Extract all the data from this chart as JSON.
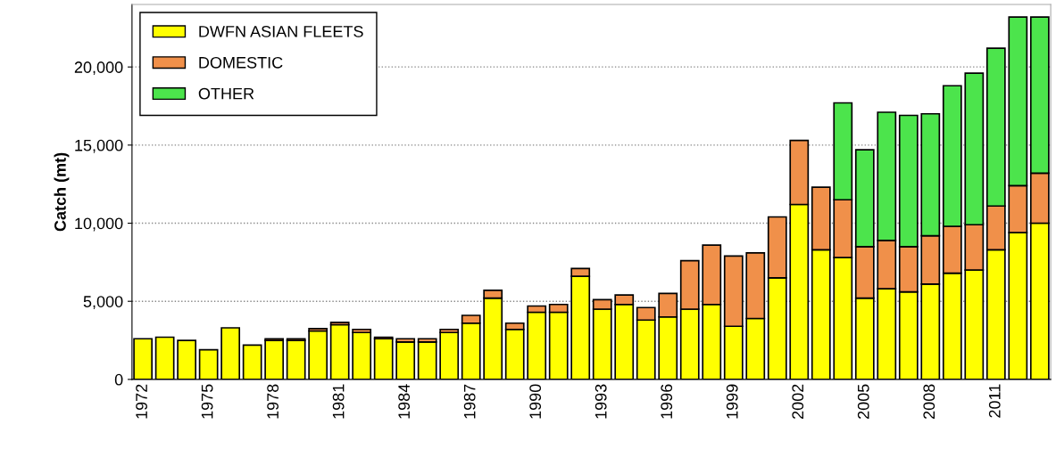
{
  "chart_data": {
    "type": "bar",
    "ylabel": "Catch (mt)",
    "stacked": true,
    "legend": "top left",
    "grid": "y",
    "categories": [
      "1972",
      null,
      null,
      "1975",
      null,
      null,
      "1978",
      null,
      null,
      "1981",
      null,
      null,
      "1984",
      null,
      null,
      "1987",
      null,
      null,
      "1990",
      null,
      null,
      "1993",
      null,
      null,
      "1996",
      null,
      null,
      "1999",
      null,
      null,
      "2002",
      null,
      null,
      "2005",
      null,
      null,
      "2008",
      null,
      null,
      "2011",
      null,
      null
    ],
    "series": [
      {
        "name": "DWFN ASIAN FLEETS",
        "color": "#ffff00",
        "values": [
          2600,
          2700,
          2500,
          1900,
          3300,
          2200,
          2500,
          2500,
          3100,
          3500,
          3000,
          2600,
          2400,
          2400,
          3000,
          3600,
          5200,
          3200,
          4300,
          4300,
          6600,
          4500,
          4800,
          3800,
          4000,
          4500,
          4800,
          3400,
          3900,
          6500,
          11200,
          8300,
          7800,
          5200,
          5800,
          5600,
          6100,
          6800,
          7000,
          8300,
          9400,
          10000
        ]
      },
      {
        "name": "DOMESTIC",
        "color": "#f0904a",
        "values": [
          null,
          null,
          null,
          null,
          null,
          null,
          100,
          100,
          150,
          150,
          200,
          100,
          200,
          200,
          200,
          500,
          500,
          400,
          400,
          500,
          500,
          600,
          600,
          800,
          1500,
          3100,
          3800,
          4500,
          4200,
          3900,
          4100,
          4000,
          3700,
          3300,
          3100,
          2900,
          3100,
          3000,
          2900,
          2800,
          3000,
          3200
        ]
      },
      {
        "name": "OTHER",
        "color": "#4ce44c",
        "values": [
          null,
          null,
          null,
          null,
          null,
          null,
          null,
          null,
          null,
          null,
          null,
          null,
          null,
          null,
          null,
          null,
          null,
          null,
          null,
          null,
          null,
          null,
          null,
          null,
          null,
          null,
          null,
          null,
          null,
          null,
          null,
          null,
          6200,
          6200,
          8200,
          8400,
          7800,
          9000,
          9700,
          10100,
          10800,
          10000
        ]
      }
    ],
    "ylim": [
      0,
      24000
    ],
    "yticks": [
      0,
      {
        "value": 5000,
        "label": "5,000"
      },
      {
        "value": 10000,
        "label": "10,000"
      },
      {
        "value": 15000,
        "label": "15,000"
      },
      {
        "value": 20000,
        "label": "20,000"
      }
    ]
  }
}
